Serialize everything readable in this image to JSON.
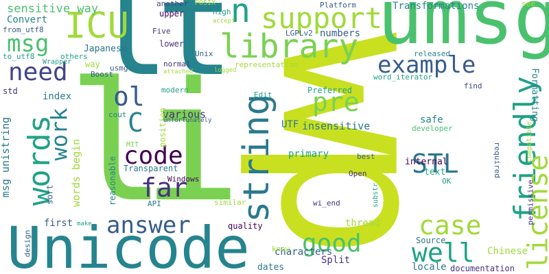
{
  "palette": {
    "yellow": "#c8e020",
    "yellowgreen": "#a0da39",
    "green": "#4ac16d",
    "lightgreen": "#7ad151",
    "teal": "#1fa187",
    "teal2": "#25848e",
    "blue": "#2a788e",
    "darkblue": "#365c8d",
    "indigo": "#414487",
    "purple": "#46327e",
    "darkpurple": "#440154"
  },
  "words": [
    {
      "text": "wp",
      "color": "yellow"
    },
    {
      "text": "lt",
      "color": "teal2"
    },
    {
      "text": "li",
      "color": "lightgreen"
    },
    {
      "text": "umsg",
      "color": "green"
    },
    {
      "text": "Unicode",
      "color": "teal2"
    },
    {
      "text": "support",
      "color": "yellowgreen"
    },
    {
      "text": "library",
      "color": "lightgreen"
    },
    {
      "text": "string",
      "color": "blue"
    },
    {
      "text": "friendly",
      "color": "teal"
    },
    {
      "text": "license",
      "color": "yellowgreen"
    },
    {
      "text": "words",
      "color": "teal"
    },
    {
      "text": "ICU",
      "color": "yellowgreen"
    },
    {
      "text": "n",
      "color": "teal"
    },
    {
      "text": "example",
      "color": "darkblue"
    },
    {
      "text": "answer",
      "color": "darkblue"
    },
    {
      "text": "code",
      "color": "darkpurple"
    },
    {
      "text": "STL",
      "color": "blue"
    },
    {
      "text": "far",
      "color": "purple"
    },
    {
      "text": "case",
      "color": "yellowgreen"
    },
    {
      "text": "well",
      "color": "teal"
    },
    {
      "text": "good",
      "color": "green"
    },
    {
      "text": "need",
      "color": "indigo"
    },
    {
      "text": "msg",
      "color": "green"
    },
    {
      "text": "work",
      "color": "teal2"
    },
    {
      "text": "pre",
      "color": "lightgreen"
    },
    {
      "text": "ol",
      "color": "darkblue"
    },
    {
      "text": "C",
      "color": "teal2"
    },
    {
      "text": "sensitive way",
      "color": "green"
    },
    {
      "text": "Transformations",
      "color": "teal2"
    },
    {
      "text": "msg unistring",
      "color": "blue"
    },
    {
      "text": "words begin",
      "color": "yellowgreen"
    },
    {
      "text": "insensitive",
      "color": "blue"
    },
    {
      "text": "various",
      "color": "purple"
    },
    {
      "text": "Japanese",
      "color": "blue"
    },
    {
      "text": "Convert",
      "color": "teal2"
    },
    {
      "text": "numbers",
      "color": "darkblue"
    },
    {
      "text": "characters",
      "color": "darkblue"
    },
    {
      "text": "Chinese",
      "color": "yellowgreen"
    },
    {
      "text": "locale",
      "color": "blue"
    },
    {
      "text": "dates",
      "color": "blue"
    },
    {
      "text": "Split",
      "color": "purple"
    },
    {
      "text": "thread",
      "color": "yellowgreen"
    },
    {
      "text": "safe",
      "color": "teal2"
    },
    {
      "text": "internal",
      "color": "darkpurple"
    },
    {
      "text": "text",
      "color": "teal"
    },
    {
      "text": "primary",
      "color": "teal"
    },
    {
      "text": "UTF",
      "color": "blue"
    },
    {
      "text": "index",
      "color": "blue"
    },
    {
      "text": "first",
      "color": "darkblue"
    },
    {
      "text": "quality",
      "color": "darkpurple"
    },
    {
      "text": "Formatting",
      "color": "teal2"
    },
    {
      "text": "documentation",
      "color": "purple"
    },
    {
      "text": "Source",
      "color": "blue"
    },
    {
      "text": "Preferred",
      "color": "teal"
    },
    {
      "text": "position",
      "color": "yellowgreen"
    },
    {
      "text": "reasonable",
      "color": "teal2"
    },
    {
      "text": "Transparent",
      "color": "blue"
    },
    {
      "text": "Windows",
      "color": "darkpurple"
    },
    {
      "text": "upper",
      "color": "darkpurple"
    },
    {
      "text": "lower",
      "color": "purple"
    },
    {
      "text": "way",
      "color": "yellowgreen"
    },
    {
      "text": "std",
      "color": "purple"
    },
    {
      "text": "sort",
      "color": "darkblue"
    },
    {
      "text": "design",
      "color": "darkblue"
    },
    {
      "text": "released",
      "color": "teal2"
    },
    {
      "text": "developer",
      "color": "green"
    },
    {
      "text": "required",
      "color": "darkblue"
    },
    {
      "text": "permissive",
      "color": "purple"
    },
    {
      "text": "compatible",
      "color": "yellowgreen"
    },
    {
      "text": "find",
      "color": "indigo"
    },
    {
      "text": "Open",
      "color": "purple"
    },
    {
      "text": "OK",
      "color": "teal"
    },
    {
      "text": "substr",
      "color": "teal"
    },
    {
      "text": "wi_end",
      "color": "purple"
    },
    {
      "text": "similar",
      "color": "yellowgreen"
    },
    {
      "text": "API",
      "color": "blue"
    },
    {
      "text": "MIT",
      "color": "lightgreen"
    },
    {
      "text": "cout",
      "color": "teal2"
    },
    {
      "text": "modern",
      "color": "teal"
    },
    {
      "text": "Edit",
      "color": "teal"
    },
    {
      "text": "LGPLv2",
      "color": "darkblue"
    },
    {
      "text": "Unix",
      "color": "darkblue"
    },
    {
      "text": "normal",
      "color": "purple"
    },
    {
      "text": "usmg",
      "color": "darkblue"
    },
    {
      "text": "Boost",
      "color": "darkblue"
    },
    {
      "text": "Five",
      "color": "purple"
    },
    {
      "text": "another",
      "color": "indigo"
    },
    {
      "text": "POSIX",
      "color": "yellowgreen"
    },
    {
      "text": "high",
      "color": "teal"
    },
    {
      "text": "accept",
      "color": "yellowgreen"
    },
    {
      "text": "Platform",
      "color": "darkblue"
    },
    {
      "text": "see",
      "color": "yellowgreen"
    },
    {
      "text": "from_utf8",
      "color": "darkblue"
    },
    {
      "text": "to_utf8",
      "color": "teal"
    },
    {
      "text": "others",
      "color": "teal"
    },
    {
      "text": "Wrapper",
      "color": "teal"
    },
    {
      "text": "representation",
      "color": "yellowgreen"
    },
    {
      "text": "attached",
      "color": "yellowgreen"
    },
    {
      "text": "logged",
      "color": "yellowgreen"
    },
    {
      "text": "word_iterator",
      "color": "teal"
    },
    {
      "text": "best",
      "color": "darkblue"
    },
    {
      "text": "unfortunately",
      "color": "darkblue"
    },
    {
      "text": "make",
      "color": "teal"
    },
    {
      "text": "know",
      "color": "yellowgreen"
    }
  ]
}
